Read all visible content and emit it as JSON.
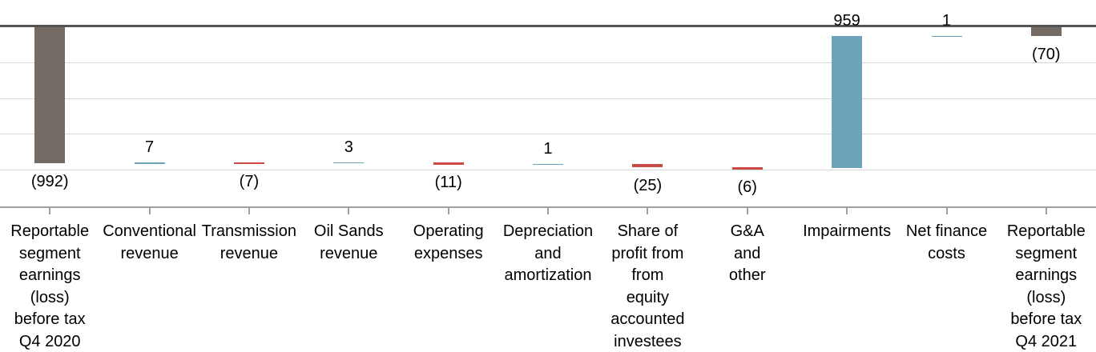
{
  "chart_data": {
    "type": "bar",
    "subtype": "waterfall",
    "title": "",
    "xlabel": "",
    "ylabel": "",
    "ylim": [
      -1300,
      0
    ],
    "gridline_step": 260,
    "grid": true,
    "legend": "none",
    "bars": [
      {
        "label": "Reportable\nsegment\nearnings\n(loss)\nbefore tax\nQ4 2020",
        "value": -992,
        "kind": "total",
        "data_label": "(992)",
        "label_side": "below"
      },
      {
        "label": "Conventional\nrevenue",
        "value": 7,
        "kind": "delta",
        "data_label": "7",
        "label_side": "above"
      },
      {
        "label": "Transmission\nrevenue",
        "value": -7,
        "kind": "delta",
        "data_label": "(7)",
        "label_side": "below"
      },
      {
        "label": "Oil Sands\nrevenue",
        "value": 3,
        "kind": "delta",
        "data_label": "3",
        "label_side": "above"
      },
      {
        "label": "Operating\nexpenses",
        "value": -11,
        "kind": "delta",
        "data_label": "(11)",
        "label_side": "below"
      },
      {
        "label": "Depreciation\nand\namortization",
        "value": 1,
        "kind": "delta",
        "data_label": "1",
        "label_side": "above"
      },
      {
        "label": "Share of\nprofit from\nfrom\nequity\naccounted\ninvestees",
        "value": -25,
        "kind": "delta",
        "data_label": "(25)",
        "label_side": "below"
      },
      {
        "label": "G&A\nand\nother",
        "value": -6,
        "kind": "delta",
        "data_label": "(6)",
        "label_side": "below"
      },
      {
        "label": "Impairments",
        "value": 959,
        "kind": "delta",
        "data_label": "959",
        "label_side": "above"
      },
      {
        "label": "Net finance\ncosts",
        "value": 1,
        "kind": "delta",
        "data_label": "1",
        "label_side": "above"
      },
      {
        "label": "Reportable\nsegment\nearnings\n(loss)\nbefore tax\nQ4 2021",
        "value": -70,
        "kind": "total",
        "data_label": "(70)",
        "label_side": "below"
      }
    ],
    "colors": {
      "increase": "#6EA4BB",
      "decrease": "#CC4A44",
      "total": "#746B64",
      "zero_line": "#545454",
      "gridline": "#D9D9D9",
      "axis_line": "#A0A0A0",
      "text": "#000000",
      "background": "#FFFFFF"
    }
  }
}
